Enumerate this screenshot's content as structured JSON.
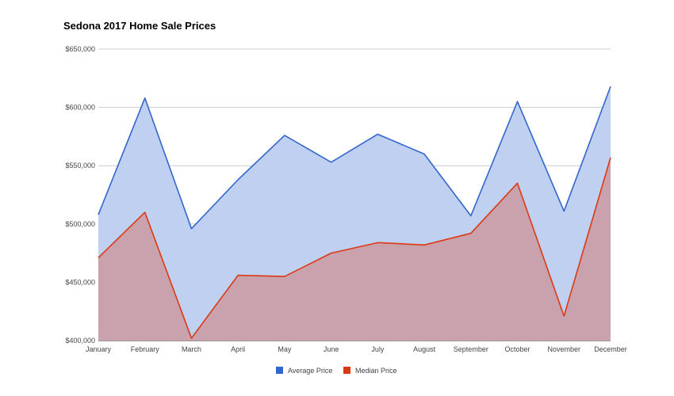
{
  "chart_data": {
    "type": "area",
    "title": "Sedona 2017 Home Sale Prices",
    "xlabel": "",
    "ylabel": "",
    "categories": [
      "January",
      "February",
      "March",
      "April",
      "May",
      "June",
      "July",
      "August",
      "September",
      "October",
      "November",
      "December"
    ],
    "ylim": [
      400000,
      650000
    ],
    "yticks": [
      400000,
      450000,
      500000,
      550000,
      600000,
      650000
    ],
    "ytick_labels": [
      "$400,000",
      "$450,000",
      "$500,000",
      "$550,000",
      "$600,000",
      "$650,000"
    ],
    "grid": true,
    "legend_position": "bottom",
    "series": [
      {
        "name": "Average Price",
        "color": "#3366cc",
        "fill": "#c0d0f0",
        "values": [
          508000,
          608000,
          496000,
          538000,
          576000,
          553000,
          577000,
          560000,
          507000,
          605000,
          511000,
          618000
        ]
      },
      {
        "name": "Median Price",
        "color": "#dc3912",
        "fill": "#c9a2ad",
        "values": [
          471000,
          510000,
          402000,
          456000,
          455000,
          475000,
          484000,
          482000,
          492000,
          535000,
          421000,
          557000
        ]
      }
    ]
  }
}
